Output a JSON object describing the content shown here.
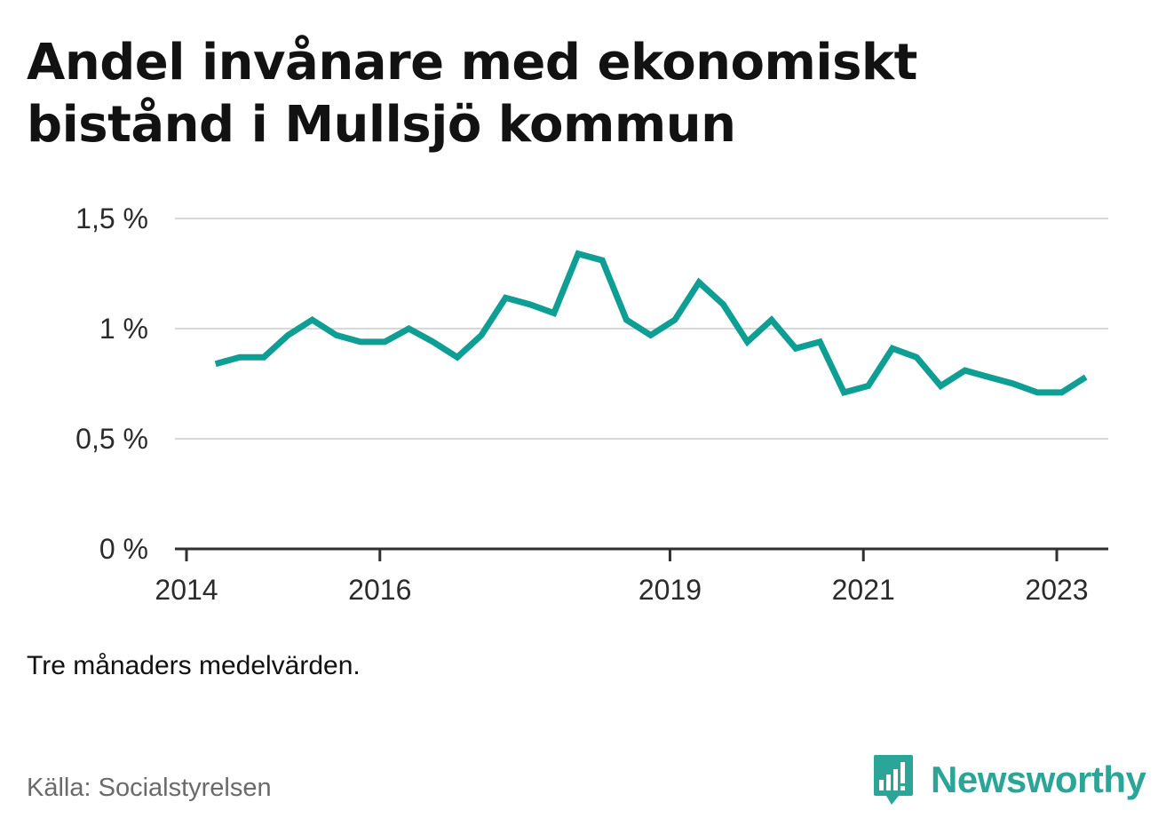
{
  "title": "Andel invånare med ekonomiskt bistånd i Mullsjö kommun",
  "note": "Tre månaders medelvärden.",
  "source": "Källa: Socialstyrelsen",
  "brand": {
    "name": "Newsworthy",
    "icon": "newsworthy-logo-icon",
    "color": "#2aa597"
  },
  "chart_data": {
    "type": "line",
    "title": "Andel invånare med ekonomiskt bistånd i Mullsjö kommun",
    "xlabel": "",
    "ylabel": "",
    "ylim": [
      0,
      1.5
    ],
    "xlim": [
      2013.9,
      2024.0
    ],
    "grid": true,
    "line_color": "#0e9e94",
    "y_ticks": [
      {
        "value": 0,
        "label": "0 %"
      },
      {
        "value": 0.5,
        "label": "0,5 %"
      },
      {
        "value": 1,
        "label": "1 %"
      },
      {
        "value": 1.5,
        "label": "1,5 %"
      }
    ],
    "x_ticks": [
      {
        "value": 2014,
        "label": "2014"
      },
      {
        "value": 2016,
        "label": "2016"
      },
      {
        "value": 2019,
        "label": "2019"
      },
      {
        "value": 2021,
        "label": "2021"
      },
      {
        "value": 2023,
        "label": "2023"
      }
    ],
    "series": [
      {
        "name": "",
        "x": [
          2014.3,
          2014.55,
          2014.8,
          2015.05,
          2015.3,
          2015.55,
          2015.8,
          2016.05,
          2016.3,
          2016.55,
          2016.8,
          2017.05,
          2017.3,
          2017.55,
          2017.8,
          2018.05,
          2018.3,
          2018.55,
          2018.8,
          2019.05,
          2019.3,
          2019.55,
          2019.8,
          2020.05,
          2020.3,
          2020.55,
          2020.8,
          2021.05,
          2021.3,
          2021.55,
          2021.8,
          2022.05,
          2022.3,
          2022.55,
          2022.8,
          2023.05,
          2023.3
        ],
        "y": [
          0.84,
          0.87,
          0.87,
          0.97,
          1.04,
          0.97,
          0.94,
          0.94,
          1.0,
          0.94,
          0.87,
          0.97,
          1.14,
          1.11,
          1.07,
          1.34,
          1.31,
          1.04,
          0.97,
          1.04,
          1.21,
          1.11,
          0.94,
          1.04,
          0.91,
          0.94,
          0.71,
          0.74,
          0.91,
          0.87,
          0.74,
          0.81,
          0.78,
          0.75,
          0.71,
          0.71,
          0.78
        ]
      }
    ]
  }
}
